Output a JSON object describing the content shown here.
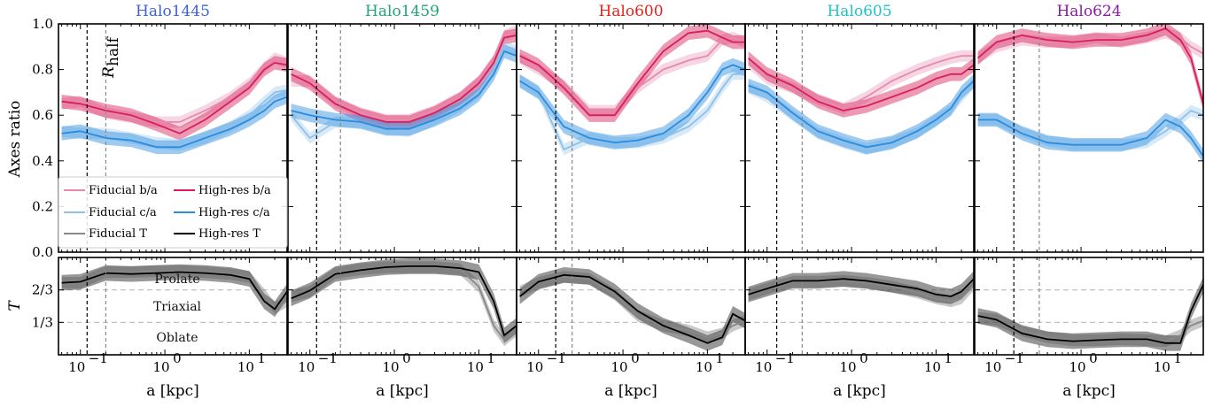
{
  "figure": {
    "ylabel_top": "Axes ratio",
    "ylabel_bottom": "T",
    "xlabel": "a [kpc]",
    "region_labels": [
      "Prolate",
      "Triaxial",
      "Oblate"
    ],
    "rhalf_label": "R",
    "rhalf_sub": "half"
  },
  "chart_data": {
    "type": "line",
    "xscale": "log",
    "xlim": [
      0.055,
      28
    ],
    "ylim_top": [
      0,
      1
    ],
    "ylim_bottom": [
      0,
      1
    ],
    "yticks_top": [
      "0.0",
      "0.2",
      "0.4",
      "0.6",
      "0.8",
      "1.0"
    ],
    "yticks_bottom": [
      "1/3",
      "2/3"
    ],
    "xticks": [
      "10",
      "10",
      "10"
    ],
    "xtick_exponents": [
      "−1",
      "0",
      "1"
    ],
    "grid": false,
    "legend": {
      "placement": "lower-left of first panel",
      "entries": [
        "Fiducial b/a",
        "High-res b/a",
        "Fiducial c/a",
        "High-res c/a",
        "Fiducial T",
        "High-res T"
      ]
    },
    "colors": {
      "fid_ba": "#e58aae",
      "hr_ba": "#d81e5b",
      "fid_ca": "#8ec1ea",
      "hr_ca": "#2a8cde",
      "fid_T": "#888888",
      "hr_T": "#000000"
    },
    "panels": [
      {
        "title": "Halo1445",
        "title_color": "#3d62d8",
        "vlines": [
          0.12,
          0.2
        ],
        "x": [
          0.06,
          0.1,
          0.2,
          0.4,
          0.8,
          1.5,
          3,
          6,
          10,
          15,
          20,
          28
        ],
        "fid_ba": [
          0.65,
          0.66,
          0.61,
          0.59,
          0.57,
          0.57,
          0.62,
          0.68,
          0.74,
          0.81,
          0.85,
          0.83
        ],
        "hr_ba": [
          0.66,
          0.65,
          0.62,
          0.6,
          0.56,
          0.52,
          0.58,
          0.66,
          0.72,
          0.8,
          0.83,
          0.82
        ],
        "fid_ca": [
          0.53,
          0.52,
          0.52,
          0.5,
          0.48,
          0.47,
          0.5,
          0.55,
          0.6,
          0.66,
          0.7,
          0.71
        ],
        "hr_ca": [
          0.52,
          0.53,
          0.5,
          0.49,
          0.46,
          0.46,
          0.5,
          0.54,
          0.58,
          0.62,
          0.66,
          0.68
        ],
        "fid_T": [
          0.74,
          0.74,
          0.85,
          0.85,
          0.86,
          0.86,
          0.85,
          0.83,
          0.8,
          0.62,
          0.48,
          0.55
        ],
        "hr_T": [
          0.74,
          0.75,
          0.84,
          0.83,
          0.84,
          0.85,
          0.84,
          0.82,
          0.78,
          0.55,
          0.47,
          0.65
        ]
      },
      {
        "title": "Halo1459",
        "title_color": "#1fa37a",
        "vlines": [
          0.12,
          0.23
        ],
        "x": [
          0.06,
          0.1,
          0.2,
          0.4,
          0.8,
          1.5,
          3,
          6,
          10,
          15,
          20,
          28
        ],
        "fid_ba": [
          0.75,
          0.75,
          0.66,
          0.61,
          0.58,
          0.58,
          0.62,
          0.68,
          0.75,
          0.84,
          0.95,
          0.97
        ],
        "hr_ba": [
          0.78,
          0.74,
          0.65,
          0.6,
          0.57,
          0.57,
          0.61,
          0.67,
          0.74,
          0.83,
          0.94,
          0.95
        ],
        "fid_ca": [
          0.6,
          0.5,
          0.57,
          0.57,
          0.54,
          0.53,
          0.58,
          0.64,
          0.7,
          0.8,
          0.9,
          0.88
        ],
        "hr_ca": [
          0.62,
          0.6,
          0.58,
          0.57,
          0.54,
          0.54,
          0.58,
          0.63,
          0.69,
          0.78,
          0.88,
          0.86
        ],
        "fid_T": [
          0.6,
          0.65,
          0.84,
          0.88,
          0.9,
          0.9,
          0.9,
          0.88,
          0.7,
          0.3,
          0.15,
          0.25
        ],
        "hr_T": [
          0.58,
          0.66,
          0.83,
          0.87,
          0.9,
          0.91,
          0.91,
          0.89,
          0.85,
          0.55,
          0.2,
          0.3
        ]
      },
      {
        "title": "Halo600",
        "title_color": "#e8221c",
        "vlines": [
          0.16,
          0.25
        ],
        "x": [
          0.06,
          0.1,
          0.2,
          0.4,
          0.8,
          1.5,
          3,
          6,
          10,
          15,
          20,
          28
        ],
        "fid_ba": [
          0.85,
          0.8,
          0.73,
          0.62,
          0.62,
          0.72,
          0.8,
          0.84,
          0.86,
          0.93,
          0.94,
          0.92
        ],
        "hr_ba": [
          0.86,
          0.82,
          0.72,
          0.6,
          0.6,
          0.74,
          0.88,
          0.96,
          0.97,
          0.94,
          0.92,
          0.92
        ],
        "fid_ca": [
          0.75,
          0.7,
          0.45,
          0.5,
          0.48,
          0.48,
          0.5,
          0.55,
          0.62,
          0.72,
          0.78,
          0.78
        ],
        "hr_ca": [
          0.75,
          0.7,
          0.55,
          0.5,
          0.48,
          0.49,
          0.52,
          0.6,
          0.7,
          0.8,
          0.82,
          0.8
        ],
        "fid_T": [
          0.65,
          0.74,
          0.8,
          0.78,
          0.62,
          0.4,
          0.3,
          0.25,
          0.18,
          0.22,
          0.3,
          0.35
        ],
        "hr_T": [
          0.6,
          0.75,
          0.82,
          0.8,
          0.65,
          0.45,
          0.3,
          0.2,
          0.12,
          0.18,
          0.42,
          0.35
        ]
      },
      {
        "title": "Halo605",
        "title_color": "#1fc4c4",
        "vlines": [
          0.13,
          0.26
        ],
        "x": [
          0.06,
          0.1,
          0.2,
          0.4,
          0.8,
          1.5,
          3,
          6,
          10,
          15,
          20,
          28
        ],
        "fid_ba": [
          0.83,
          0.76,
          0.72,
          0.67,
          0.63,
          0.68,
          0.75,
          0.8,
          0.83,
          0.85,
          0.86,
          0.86
        ],
        "hr_ba": [
          0.85,
          0.78,
          0.73,
          0.66,
          0.62,
          0.64,
          0.68,
          0.72,
          0.76,
          0.78,
          0.78,
          0.82
        ],
        "fid_ca": [
          0.72,
          0.68,
          0.6,
          0.52,
          0.48,
          0.45,
          0.48,
          0.52,
          0.58,
          0.62,
          0.68,
          0.74
        ],
        "hr_ca": [
          0.73,
          0.7,
          0.61,
          0.53,
          0.49,
          0.46,
          0.48,
          0.53,
          0.58,
          0.63,
          0.7,
          0.75
        ],
        "fid_T": [
          0.62,
          0.68,
          0.75,
          0.75,
          0.76,
          0.74,
          0.7,
          0.64,
          0.58,
          0.55,
          0.58,
          0.72
        ],
        "hr_T": [
          0.62,
          0.68,
          0.76,
          0.76,
          0.78,
          0.76,
          0.72,
          0.68,
          0.62,
          0.6,
          0.65,
          0.78
        ]
      },
      {
        "title": "Halo624",
        "title_color": "#8b1aa0",
        "vlines": [
          0.16,
          0.32
        ],
        "x": [
          0.06,
          0.1,
          0.2,
          0.4,
          0.8,
          1.5,
          3,
          6,
          10,
          15,
          20,
          28
        ],
        "fid_ba": [
          0.85,
          0.9,
          0.93,
          0.92,
          0.92,
          0.94,
          0.92,
          0.94,
          0.96,
          0.94,
          0.9,
          0.87
        ],
        "hr_ba": [
          0.85,
          0.92,
          0.95,
          0.93,
          0.92,
          0.93,
          0.93,
          0.95,
          0.98,
          0.93,
          0.85,
          0.65
        ],
        "fid_ca": [
          0.58,
          0.58,
          0.53,
          0.49,
          0.47,
          0.47,
          0.47,
          0.48,
          0.53,
          0.58,
          0.62,
          0.6
        ],
        "hr_ca": [
          0.58,
          0.58,
          0.52,
          0.48,
          0.47,
          0.47,
          0.47,
          0.5,
          0.58,
          0.55,
          0.5,
          0.42
        ],
        "fid_T": [
          0.38,
          0.36,
          0.25,
          0.18,
          0.15,
          0.15,
          0.16,
          0.15,
          0.14,
          0.2,
          0.3,
          0.35
        ],
        "hr_T": [
          0.4,
          0.36,
          0.22,
          0.16,
          0.14,
          0.15,
          0.16,
          0.16,
          0.12,
          0.12,
          0.45,
          0.72
        ]
      }
    ]
  }
}
